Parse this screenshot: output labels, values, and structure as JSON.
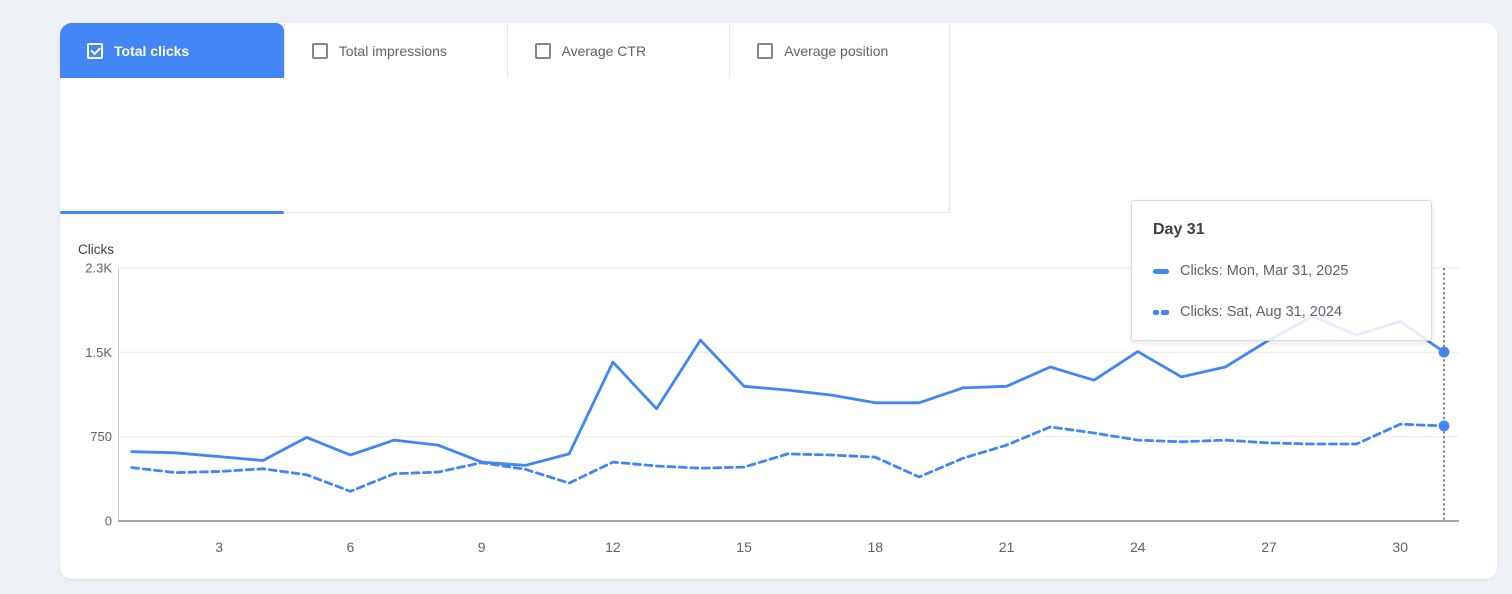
{
  "colors": {
    "accent_blue": "#4285f4",
    "series_blue": "#4285f4",
    "grid_line": "#e7eaed",
    "axis_bottom": "#80868b",
    "axis_left": "#c5c9cd",
    "tick_text": "#5f6368",
    "axis_title_text": "#3c4043",
    "crosshair": "#818589"
  },
  "tabs": [
    {
      "label": "Total clicks",
      "checked": true,
      "selected": true
    },
    {
      "label": "Total impressions",
      "checked": false,
      "selected": false
    },
    {
      "label": "Average CTR",
      "checked": false,
      "selected": false
    },
    {
      "label": "Average position",
      "checked": false,
      "selected": false
    }
  ],
  "tooltip": {
    "title": "Day 31",
    "rows": [
      {
        "label": "Clicks: Mon, Mar 31, 2025",
        "marker": "solid"
      },
      {
        "label": "Clicks: Sat, Aug 31, 2024",
        "marker": "dashed"
      }
    ]
  },
  "chart_data": {
    "type": "line",
    "title": "",
    "xlabel": "",
    "ylabel": "Clicks",
    "x": [
      1,
      2,
      3,
      4,
      5,
      6,
      7,
      8,
      9,
      10,
      11,
      12,
      13,
      14,
      15,
      16,
      17,
      18,
      19,
      20,
      21,
      22,
      23,
      24,
      25,
      26,
      27,
      28,
      29,
      30,
      31
    ],
    "x_tick_labels": [
      "3",
      "6",
      "9",
      "12",
      "15",
      "18",
      "21",
      "24",
      "27",
      "30"
    ],
    "y_ticks": [
      {
        "label": "0",
        "value": 0
      },
      {
        "label": "750",
        "value": 766.7
      },
      {
        "label": "1.5K",
        "value": 1533.3
      },
      {
        "label": "2.3K",
        "value": 2300
      }
    ],
    "ylim": [
      0,
      2300
    ],
    "grid": "horizontal",
    "legend_position": "tooltip",
    "hover_day": 31,
    "series": [
      {
        "name": "Clicks: Mon, Mar 31, 2025",
        "style": "solid",
        "color": "#4285f4",
        "values": [
          630,
          620,
          585,
          550,
          760,
          600,
          735,
          690,
          535,
          505,
          610,
          1445,
          1020,
          1645,
          1225,
          1190,
          1145,
          1075,
          1075,
          1210,
          1225,
          1400,
          1280,
          1540,
          1310,
          1400,
          1645,
          1860,
          1690,
          1815,
          1535
        ]
      },
      {
        "name": "Clicks: Sat, Aug 31, 2024",
        "style": "dashed",
        "color": "#4285f4",
        "values": [
          485,
          440,
          450,
          475,
          420,
          270,
          430,
          445,
          530,
          470,
          345,
          535,
          500,
          480,
          490,
          610,
          600,
          580,
          400,
          570,
          690,
          855,
          800,
          735,
          720,
          735,
          710,
          700,
          700,
          880,
          865
        ]
      }
    ]
  }
}
